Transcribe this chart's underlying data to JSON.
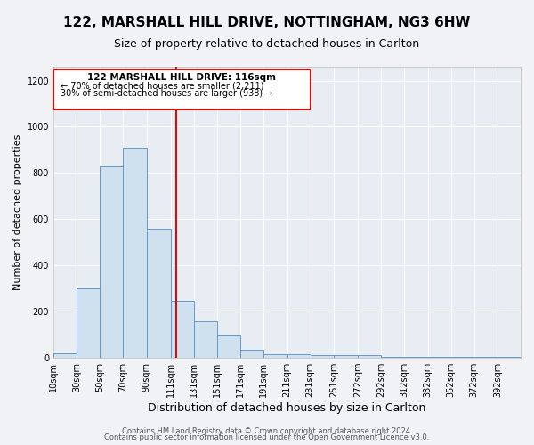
{
  "title": "122, MARSHALL HILL DRIVE, NOTTINGHAM, NG3 6HW",
  "subtitle": "Size of property relative to detached houses in Carlton",
  "xlabel": "Distribution of detached houses by size in Carlton",
  "ylabel": "Number of detached properties",
  "footer1": "Contains HM Land Registry data © Crown copyright and database right 2024.",
  "footer2": "Contains public sector information licensed under the Open Government Licence v3.0.",
  "annotation_title": "122 MARSHALL HILL DRIVE: 116sqm",
  "annotation_line1": "← 70% of detached houses are smaller (2,211)",
  "annotation_line2": "30% of semi-detached houses are larger (938) →",
  "bar_edges": [
    10,
    30,
    50,
    70,
    90,
    111,
    131,
    151,
    171,
    191,
    211,
    231,
    251,
    272,
    292,
    312,
    332,
    352,
    372,
    392,
    412
  ],
  "bar_heights": [
    20,
    300,
    830,
    910,
    560,
    245,
    160,
    100,
    35,
    15,
    15,
    10,
    10,
    10,
    5,
    5,
    5,
    5,
    5,
    5
  ],
  "bar_color": "#cfe0ef",
  "bar_edge_color": "#6699cc",
  "vline_x": 116,
  "vline_color": "#cc1111",
  "box_color": "#cc1111",
  "ylim": [
    0,
    1260
  ],
  "yticks": [
    0,
    200,
    400,
    600,
    800,
    1000,
    1200
  ],
  "bg_color": "#f0f2f5",
  "plot_bg_color": "#e8edf3",
  "grid_color": "#ffffff",
  "title_fontsize": 11,
  "subtitle_fontsize": 9,
  "ylabel_fontsize": 8,
  "xlabel_fontsize": 9,
  "tick_fontsize": 7,
  "footer_fontsize": 6
}
